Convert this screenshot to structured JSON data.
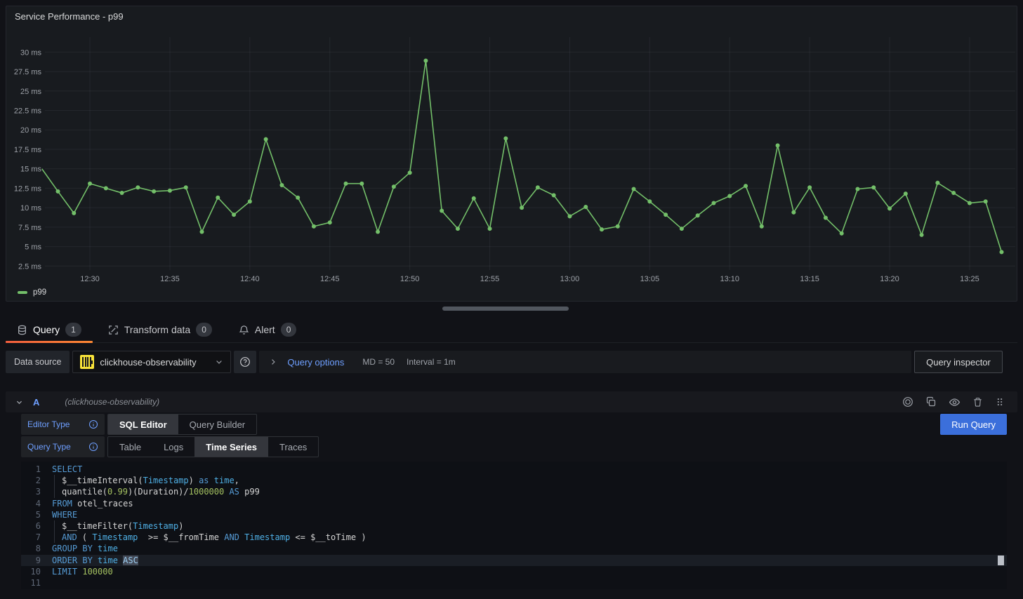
{
  "panel": {
    "title": "Service Performance - p99",
    "legend_label": "p99"
  },
  "chart_data": {
    "type": "line",
    "title": "Service Performance - p99",
    "unit": "ms",
    "line_color": "#73BF69",
    "grid": true,
    "legend_position": "bottom-left",
    "legend": [
      "p99"
    ],
    "ylim": [
      2.5,
      30
    ],
    "yticks": [
      2.5,
      5,
      7.5,
      10,
      12.5,
      15,
      17.5,
      20,
      22.5,
      25,
      27.5,
      30
    ],
    "xticks": [
      "12:30",
      "12:35",
      "12:40",
      "12:45",
      "12:50",
      "12:55",
      "13:00",
      "13:05",
      "13:10",
      "13:15",
      "13:20",
      "13:25"
    ],
    "categories": [
      "12:27",
      "12:28",
      "12:29",
      "12:30",
      "12:31",
      "12:32",
      "12:33",
      "12:34",
      "12:35",
      "12:36",
      "12:37",
      "12:38",
      "12:39",
      "12:40",
      "12:41",
      "12:42",
      "12:43",
      "12:44",
      "12:45",
      "12:46",
      "12:47",
      "12:48",
      "12:49",
      "12:50",
      "12:51",
      "12:52",
      "12:53",
      "12:54",
      "12:55",
      "12:56",
      "12:57",
      "12:58",
      "12:59",
      "13:00",
      "13:01",
      "13:02",
      "13:03",
      "13:04",
      "13:05",
      "13:06",
      "13:07",
      "13:08",
      "13:09",
      "13:10",
      "13:11",
      "13:12",
      "13:13",
      "13:14",
      "13:15",
      "13:16",
      "13:17",
      "13:18",
      "13:19",
      "13:20",
      "13:21",
      "13:22",
      "13:23",
      "13:24",
      "13:25",
      "13:26",
      "13:27"
    ],
    "series": [
      {
        "name": "p99",
        "values": [
          15.0,
          12.1,
          9.3,
          13.1,
          12.5,
          11.9,
          12.6,
          12.1,
          12.2,
          12.6,
          6.9,
          11.3,
          9.1,
          10.8,
          18.8,
          12.9,
          11.3,
          7.6,
          8.1,
          13.1,
          13.1,
          6.9,
          12.7,
          14.5,
          28.9,
          9.6,
          7.3,
          11.2,
          7.3,
          18.9,
          10.0,
          12.6,
          11.6,
          8.9,
          10.1,
          7.2,
          7.6,
          12.4,
          10.8,
          9.1,
          7.3,
          9.0,
          10.6,
          11.5,
          12.8,
          7.6,
          18.0,
          9.4,
          12.6,
          8.7,
          6.7,
          12.4,
          12.6,
          9.9,
          11.8,
          6.5,
          13.2,
          11.9,
          10.6,
          10.8,
          4.3
        ]
      }
    ]
  },
  "tabs": [
    {
      "label": "Query",
      "badge": "1",
      "icon": "database-icon",
      "active": true
    },
    {
      "label": "Transform data",
      "badge": "0",
      "icon": "transform-icon",
      "active": false
    },
    {
      "label": "Alert",
      "badge": "0",
      "icon": "bell-icon",
      "active": false
    }
  ],
  "datasource_row": {
    "label": "Data source",
    "name": "clickhouse-observability",
    "query_options_label": "Query options",
    "max_data_points": "MD = 50",
    "interval": "Interval = 1m",
    "inspector_label": "Query inspector"
  },
  "query_header": {
    "ref_id": "A",
    "datasource_hint": "(clickhouse-observability)"
  },
  "editor": {
    "editor_type_label": "Editor Type",
    "editor_type_options": [
      "SQL Editor",
      "Query Builder"
    ],
    "editor_type_active": "SQL Editor",
    "query_type_label": "Query Type",
    "query_type_options": [
      "Table",
      "Logs",
      "Time Series",
      "Traces"
    ],
    "query_type_active": "Time Series",
    "run_query_label": "Run Query"
  },
  "sql": {
    "active_line": 9,
    "lines": [
      {
        "n": 1,
        "ind": false,
        "seg": [
          [
            "kw",
            "SELECT"
          ]
        ]
      },
      {
        "n": 2,
        "ind": true,
        "seg": [
          [
            "pl",
            "$__timeInterval("
          ],
          [
            "ty",
            "Timestamp"
          ],
          [
            "pl",
            ") "
          ],
          [
            "kw",
            "as"
          ],
          [
            "pl",
            " "
          ],
          [
            "ty",
            "time"
          ],
          [
            "pl",
            ","
          ]
        ]
      },
      {
        "n": 3,
        "ind": true,
        "seg": [
          [
            "pl",
            "quantile("
          ],
          [
            "num",
            "0.99"
          ],
          [
            "pl",
            ")(Duration)/"
          ],
          [
            "num",
            "1000000"
          ],
          [
            "pl",
            " "
          ],
          [
            "kw",
            "AS"
          ],
          [
            "pl",
            " p99"
          ]
        ]
      },
      {
        "n": 4,
        "ind": false,
        "seg": [
          [
            "kw",
            "FROM"
          ],
          [
            "pl",
            " otel_traces"
          ]
        ]
      },
      {
        "n": 5,
        "ind": false,
        "seg": [
          [
            "kw",
            "WHERE"
          ]
        ]
      },
      {
        "n": 6,
        "ind": true,
        "seg": [
          [
            "pl",
            "$__timeFilter("
          ],
          [
            "ty",
            "Timestamp"
          ],
          [
            "pl",
            ")"
          ]
        ]
      },
      {
        "n": 7,
        "ind": true,
        "seg": [
          [
            "kw",
            "AND"
          ],
          [
            "pl",
            " ( "
          ],
          [
            "ty",
            "Timestamp"
          ],
          [
            "pl",
            "  >= $__fromTime "
          ],
          [
            "kw",
            "AND"
          ],
          [
            "pl",
            " "
          ],
          [
            "ty",
            "Timestamp"
          ],
          [
            "pl",
            " <= $__toTime )"
          ]
        ]
      },
      {
        "n": 8,
        "ind": false,
        "seg": [
          [
            "kw",
            "GROUP BY"
          ],
          [
            "pl",
            " "
          ],
          [
            "ty",
            "time"
          ]
        ]
      },
      {
        "n": 9,
        "ind": false,
        "active": true,
        "seg": [
          [
            "kw",
            "ORDER BY"
          ],
          [
            "pl",
            " "
          ],
          [
            "ty",
            "time"
          ],
          [
            "pl",
            " "
          ],
          [
            "sel",
            "ASC"
          ]
        ]
      },
      {
        "n": 10,
        "ind": false,
        "seg": [
          [
            "kw",
            "LIMIT"
          ],
          [
            "pl",
            " "
          ],
          [
            "num",
            "100000"
          ]
        ]
      },
      {
        "n": 11,
        "ind": false,
        "seg": []
      }
    ]
  },
  "colors": {
    "series_green": "#73BF69",
    "accent_blue": "#6E9FFF",
    "run_button_blue": "#3B6FDB",
    "active_tab_orange": "#FF780A",
    "panel_background": "#181B1F",
    "page_background": "#111217"
  }
}
